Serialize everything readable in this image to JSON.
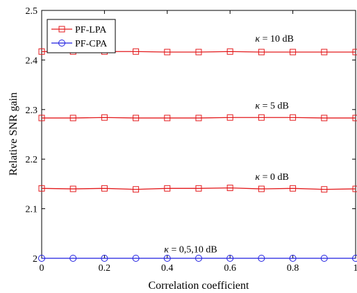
{
  "chart_data": {
    "type": "line",
    "xlabel": "Correlation coefficient",
    "ylabel": "Relative SNR gain",
    "xlim": [
      0,
      1
    ],
    "ylim": [
      2,
      2.5
    ],
    "xticks": [
      0,
      0.2,
      0.4,
      0.6,
      0.8,
      1
    ],
    "yticks": [
      2,
      2.1,
      2.2,
      2.3,
      2.4,
      2.5
    ],
    "xtick_labels": [
      "0",
      "0.2",
      "0.4",
      "0.6",
      "0.8",
      "1"
    ],
    "ytick_labels": [
      "2",
      "2.1",
      "2.2",
      "2.3",
      "2.4",
      "2.5"
    ],
    "grid": false,
    "legend_position": "top-left",
    "x": [
      0,
      0.1,
      0.2,
      0.3,
      0.4,
      0.5,
      0.6,
      0.7,
      0.8,
      0.9,
      1.0
    ],
    "series": [
      {
        "name": "PF-LPA",
        "color": "#e31a1c",
        "marker": "square",
        "show_in_legend": true,
        "values": [
          2.417,
          2.417,
          2.417,
          2.417,
          2.416,
          2.416,
          2.417,
          2.416,
          2.416,
          2.416,
          2.416
        ]
      },
      {
        "name": "PF-LPA",
        "color": "#e31a1c",
        "marker": "square",
        "show_in_legend": false,
        "values": [
          2.283,
          2.283,
          2.284,
          2.283,
          2.283,
          2.283,
          2.284,
          2.284,
          2.284,
          2.283,
          2.283
        ]
      },
      {
        "name": "PF-LPA",
        "color": "#e31a1c",
        "marker": "square",
        "show_in_legend": false,
        "values": [
          2.141,
          2.14,
          2.141,
          2.139,
          2.141,
          2.141,
          2.142,
          2.14,
          2.141,
          2.139,
          2.14
        ]
      },
      {
        "name": "PF-CPA",
        "color": "#1f1fe0",
        "marker": "circle",
        "show_in_legend": true,
        "values": [
          2.0,
          2.0,
          2.0,
          2.0,
          2.0,
          2.0,
          2.0,
          2.0,
          2.0,
          2.0,
          2.0
        ]
      }
    ],
    "annotations": [
      {
        "greek": "κ",
        "text": " = 10 dB",
        "x": 0.68,
        "y": 2.437
      },
      {
        "greek": "κ",
        "text": " = 5 dB",
        "x": 0.68,
        "y": 2.302
      },
      {
        "greek": "κ",
        "text": " = 0 dB",
        "x": 0.68,
        "y": 2.158
      },
      {
        "greek": "κ",
        "text": " = 0,5,10 dB",
        "x": 0.39,
        "y": 2.012
      }
    ]
  }
}
